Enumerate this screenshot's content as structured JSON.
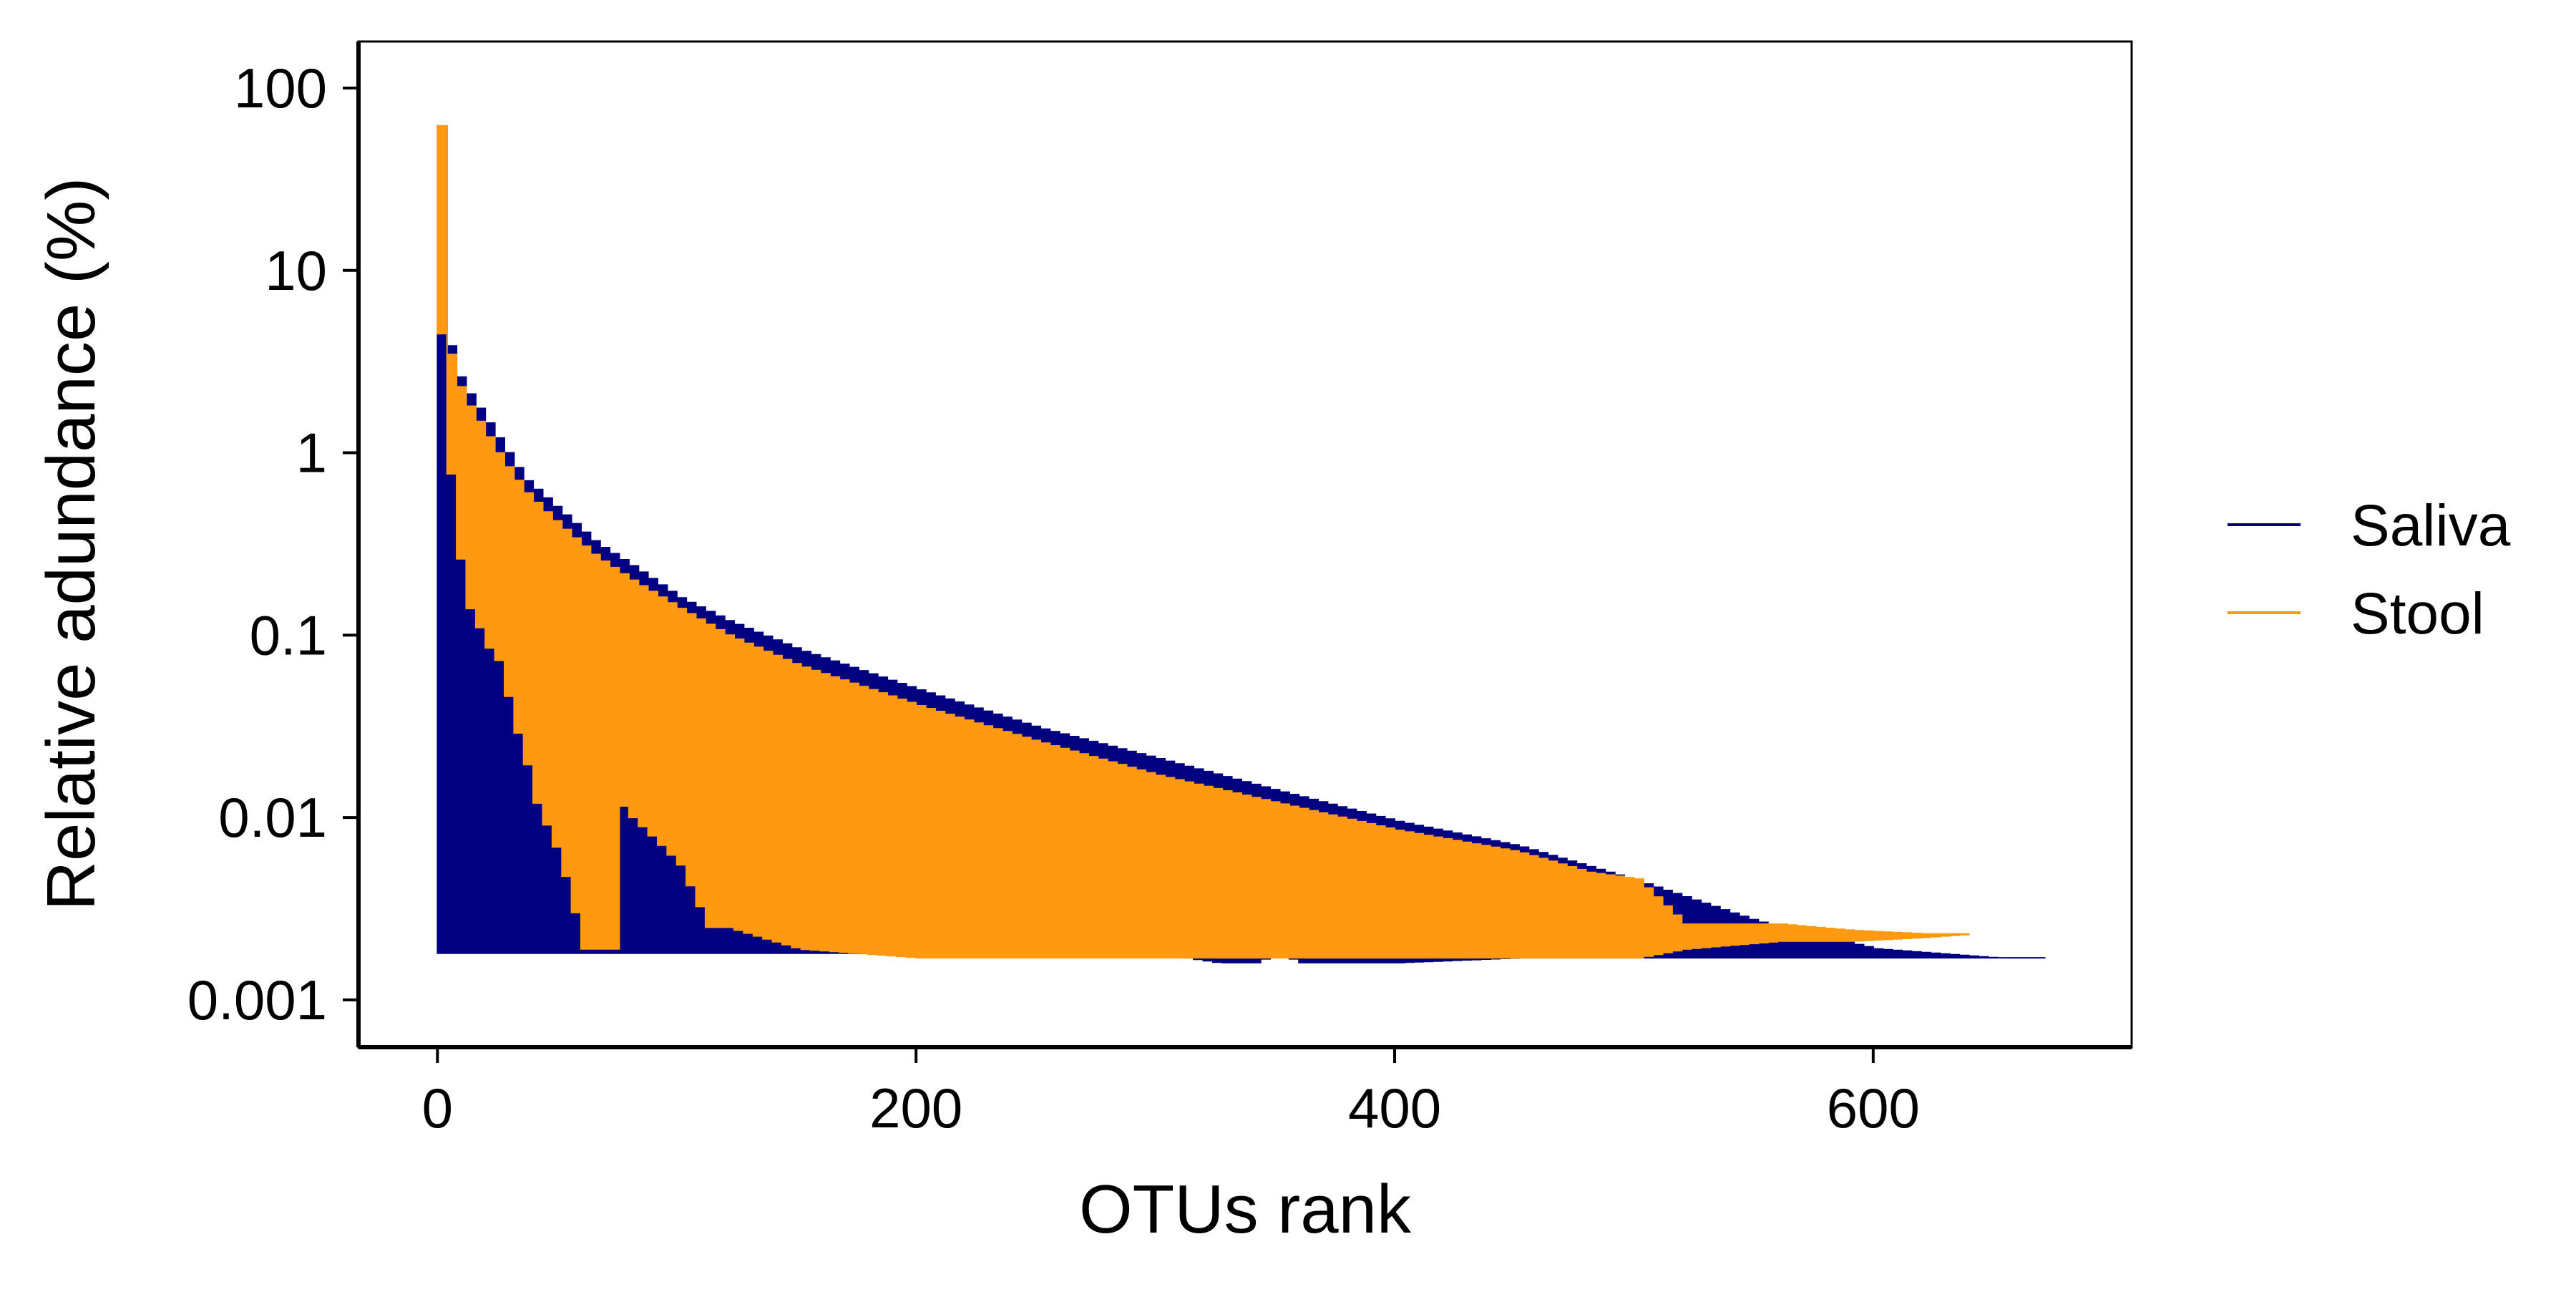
{
  "chart_data": {
    "type": "line",
    "title": "",
    "xlabel": "OTUs rank",
    "ylabel": "Relative adundance (%)",
    "xlim": [
      -33,
      708
    ],
    "ylim": [
      0.00055,
      180
    ],
    "y_scale": "log",
    "x_ticks": [
      0,
      200,
      400,
      600
    ],
    "x_tick_labels": [
      "0",
      "200",
      "400",
      "600"
    ],
    "y_ticks": [
      0.001,
      0.01,
      0.1,
      1,
      10,
      100
    ],
    "y_tick_labels": [
      "0.001",
      "0.01",
      "0.1",
      "1",
      "10",
      "100"
    ],
    "grid": false,
    "legend_position": "right",
    "series": [
      {
        "name": "Saliva",
        "color": "#000080",
        "upper": {
          "x": [
            0,
            1,
            2,
            3,
            5,
            8,
            12,
            18,
            25,
            35,
            45,
            55,
            65,
            80,
            100,
            120,
            150,
            200,
            250,
            300,
            350,
            400,
            450,
            500,
            550,
            600,
            650,
            675
          ],
          "y": [
            62,
            9,
            6,
            4.5,
            3.3,
            2.6,
            2.1,
            1.6,
            1.15,
            0.72,
            0.55,
            0.42,
            0.32,
            0.24,
            0.16,
            0.12,
            0.083,
            0.05,
            0.031,
            0.021,
            0.014,
            0.0095,
            0.007,
            0.0045,
            0.0027,
            0.0019,
            0.0017,
            0.0017
          ]
        },
        "lower": {
          "x": [
            0,
            300,
            325,
            340,
            350,
            360,
            400,
            450,
            460,
            550,
            675
          ],
          "y": [
            0.0018,
            0.0018,
            0.0016,
            0.0016,
            0.0018,
            0.0016,
            0.0016,
            0.0017,
            0.0017,
            0.0017,
            0.0017
          ]
        }
      },
      {
        "name": "Stool",
        "color": "#FF9912",
        "upper": {
          "x": [
            0,
            1,
            2,
            3,
            5,
            8,
            12,
            18,
            25,
            35,
            45,
            55,
            65,
            80,
            100,
            120,
            150,
            200,
            250,
            300,
            350,
            400,
            450,
            480,
            500,
            520,
            560,
            590,
            620,
            640
          ],
          "y": [
            62,
            8.5,
            5.5,
            4,
            3,
            2.3,
            1.8,
            1.35,
            0.95,
            0.62,
            0.46,
            0.35,
            0.27,
            0.2,
            0.14,
            0.1,
            0.068,
            0.041,
            0.026,
            0.017,
            0.012,
            0.0085,
            0.0065,
            0.005,
            0.0046,
            0.0026,
            0.0026,
            0.0024,
            0.0023,
            0.0023
          ]
        },
        "lower": {
          "x": [
            0,
            3,
            6,
            9,
            12,
            16,
            20,
            25,
            30,
            35,
            40,
            45,
            50,
            60,
            72,
            75,
            80,
            90,
            100,
            112,
            120,
            150,
            200,
            250,
            300,
            350,
            400,
            450,
            500,
            520,
            560,
            590,
            620,
            640
          ],
          "y": [
            4.5,
            1.0,
            0.45,
            0.2,
            0.14,
            0.11,
            0.085,
            0.07,
            0.035,
            0.022,
            0.012,
            0.0085,
            0.006,
            0.0019,
            0.0019,
            0.012,
            0.01,
            0.0075,
            0.0055,
            0.0025,
            0.0025,
            0.0019,
            0.0017,
            0.0017,
            0.0017,
            0.0017,
            0.0017,
            0.0017,
            0.0017,
            0.0019,
            0.0021,
            0.0021,
            0.0022,
            0.0023
          ]
        }
      }
    ]
  }
}
